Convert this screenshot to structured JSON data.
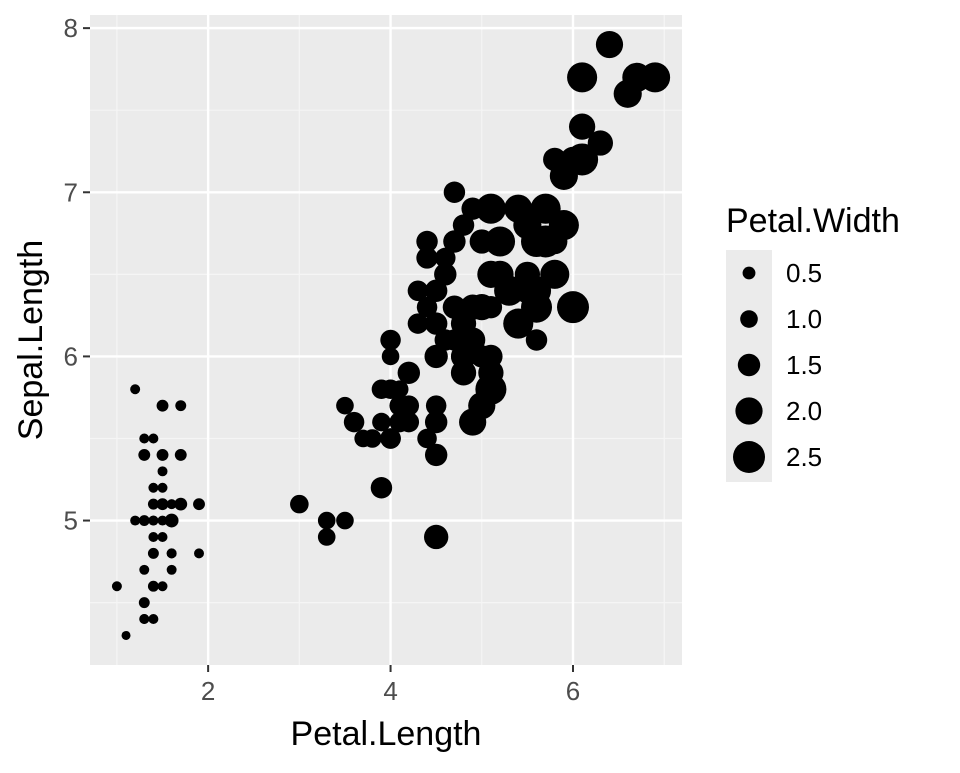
{
  "chart_data": {
    "type": "scatter",
    "xlabel": "Petal.Length",
    "ylabel": "Sepal.Length",
    "xlim": [
      0.705,
      7.195
    ],
    "ylim": [
      4.12,
      8.08
    ],
    "x_ticks": [
      2,
      4,
      6
    ],
    "y_ticks": [
      5,
      6,
      7,
      8
    ],
    "grid": true,
    "legend": {
      "title": "Petal.Width",
      "position": "right",
      "size_range": [
        0.1,
        2.5
      ],
      "breaks": [
        0.5,
        1.0,
        1.5,
        2.0,
        2.5
      ],
      "labels": [
        "0.5",
        "1.0",
        "1.5",
        "2.0",
        "2.5"
      ]
    },
    "points": [
      {
        "x": 1.4,
        "y": 5.1,
        "size": 0.2
      },
      {
        "x": 1.4,
        "y": 4.9,
        "size": 0.2
      },
      {
        "x": 1.3,
        "y": 4.7,
        "size": 0.2
      },
      {
        "x": 1.5,
        "y": 4.6,
        "size": 0.2
      },
      {
        "x": 1.4,
        "y": 5.0,
        "size": 0.2
      },
      {
        "x": 1.7,
        "y": 5.4,
        "size": 0.4
      },
      {
        "x": 1.4,
        "y": 4.6,
        "size": 0.3
      },
      {
        "x": 1.5,
        "y": 5.0,
        "size": 0.2
      },
      {
        "x": 1.4,
        "y": 4.4,
        "size": 0.2
      },
      {
        "x": 1.5,
        "y": 4.9,
        "size": 0.1
      },
      {
        "x": 1.5,
        "y": 5.4,
        "size": 0.2
      },
      {
        "x": 1.6,
        "y": 4.8,
        "size": 0.2
      },
      {
        "x": 1.4,
        "y": 4.8,
        "size": 0.1
      },
      {
        "x": 1.1,
        "y": 4.3,
        "size": 0.1
      },
      {
        "x": 1.2,
        "y": 5.8,
        "size": 0.2
      },
      {
        "x": 1.5,
        "y": 5.7,
        "size": 0.4
      },
      {
        "x": 1.3,
        "y": 5.4,
        "size": 0.4
      },
      {
        "x": 1.4,
        "y": 5.1,
        "size": 0.3
      },
      {
        "x": 1.7,
        "y": 5.7,
        "size": 0.3
      },
      {
        "x": 1.5,
        "y": 5.1,
        "size": 0.3
      },
      {
        "x": 1.7,
        "y": 5.4,
        "size": 0.2
      },
      {
        "x": 1.5,
        "y": 5.1,
        "size": 0.4
      },
      {
        "x": 1.0,
        "y": 4.6,
        "size": 0.2
      },
      {
        "x": 1.7,
        "y": 5.1,
        "size": 0.5
      },
      {
        "x": 1.9,
        "y": 4.8,
        "size": 0.2
      },
      {
        "x": 1.6,
        "y": 5.0,
        "size": 0.2
      },
      {
        "x": 1.6,
        "y": 5.0,
        "size": 0.4
      },
      {
        "x": 1.5,
        "y": 5.2,
        "size": 0.2
      },
      {
        "x": 1.4,
        "y": 5.2,
        "size": 0.2
      },
      {
        "x": 1.6,
        "y": 4.7,
        "size": 0.2
      },
      {
        "x": 1.6,
        "y": 4.8,
        "size": 0.2
      },
      {
        "x": 1.5,
        "y": 5.4,
        "size": 0.4
      },
      {
        "x": 1.5,
        "y": 5.2,
        "size": 0.1
      },
      {
        "x": 1.4,
        "y": 5.5,
        "size": 0.2
      },
      {
        "x": 1.5,
        "y": 4.9,
        "size": 0.2
      },
      {
        "x": 1.2,
        "y": 5.0,
        "size": 0.2
      },
      {
        "x": 1.3,
        "y": 5.5,
        "size": 0.2
      },
      {
        "x": 1.4,
        "y": 4.9,
        "size": 0.1
      },
      {
        "x": 1.3,
        "y": 4.4,
        "size": 0.2
      },
      {
        "x": 1.5,
        "y": 5.1,
        "size": 0.2
      },
      {
        "x": 1.3,
        "y": 5.0,
        "size": 0.3
      },
      {
        "x": 1.3,
        "y": 4.5,
        "size": 0.3
      },
      {
        "x": 1.3,
        "y": 4.4,
        "size": 0.2
      },
      {
        "x": 1.6,
        "y": 5.0,
        "size": 0.6
      },
      {
        "x": 1.9,
        "y": 5.1,
        "size": 0.4
      },
      {
        "x": 1.4,
        "y": 4.8,
        "size": 0.3
      },
      {
        "x": 1.6,
        "y": 5.1,
        "size": 0.2
      },
      {
        "x": 1.4,
        "y": 4.6,
        "size": 0.2
      },
      {
        "x": 1.5,
        "y": 5.3,
        "size": 0.2
      },
      {
        "x": 1.4,
        "y": 5.0,
        "size": 0.2
      },
      {
        "x": 4.7,
        "y": 7.0,
        "size": 1.4
      },
      {
        "x": 4.5,
        "y": 6.4,
        "size": 1.5
      },
      {
        "x": 4.9,
        "y": 6.9,
        "size": 1.5
      },
      {
        "x": 4.0,
        "y": 5.5,
        "size": 1.3
      },
      {
        "x": 4.6,
        "y": 6.5,
        "size": 1.5
      },
      {
        "x": 4.5,
        "y": 5.7,
        "size": 1.3
      },
      {
        "x": 4.7,
        "y": 6.3,
        "size": 1.6
      },
      {
        "x": 3.3,
        "y": 4.9,
        "size": 1.0
      },
      {
        "x": 4.6,
        "y": 6.6,
        "size": 1.3
      },
      {
        "x": 3.9,
        "y": 5.2,
        "size": 1.4
      },
      {
        "x": 3.5,
        "y": 5.0,
        "size": 1.0
      },
      {
        "x": 4.2,
        "y": 5.9,
        "size": 1.5
      },
      {
        "x": 4.0,
        "y": 6.0,
        "size": 1.0
      },
      {
        "x": 4.7,
        "y": 6.1,
        "size": 1.4
      },
      {
        "x": 3.6,
        "y": 5.6,
        "size": 1.3
      },
      {
        "x": 4.4,
        "y": 6.7,
        "size": 1.4
      },
      {
        "x": 4.5,
        "y": 5.6,
        "size": 1.5
      },
      {
        "x": 4.1,
        "y": 5.8,
        "size": 1.0
      },
      {
        "x": 4.5,
        "y": 6.2,
        "size": 1.5
      },
      {
        "x": 3.9,
        "y": 5.6,
        "size": 1.1
      },
      {
        "x": 4.8,
        "y": 5.9,
        "size": 1.8
      },
      {
        "x": 4.0,
        "y": 6.1,
        "size": 1.3
      },
      {
        "x": 4.9,
        "y": 6.3,
        "size": 1.5
      },
      {
        "x": 4.7,
        "y": 6.1,
        "size": 1.2
      },
      {
        "x": 4.3,
        "y": 6.4,
        "size": 1.3
      },
      {
        "x": 4.4,
        "y": 6.6,
        "size": 1.4
      },
      {
        "x": 4.8,
        "y": 6.8,
        "size": 1.4
      },
      {
        "x": 5.0,
        "y": 6.7,
        "size": 1.7
      },
      {
        "x": 4.5,
        "y": 6.0,
        "size": 1.5
      },
      {
        "x": 3.5,
        "y": 5.7,
        "size": 1.0
      },
      {
        "x": 3.8,
        "y": 5.5,
        "size": 1.1
      },
      {
        "x": 3.7,
        "y": 5.5,
        "size": 1.0
      },
      {
        "x": 3.9,
        "y": 5.8,
        "size": 1.2
      },
      {
        "x": 5.1,
        "y": 6.0,
        "size": 1.6
      },
      {
        "x": 4.5,
        "y": 5.4,
        "size": 1.5
      },
      {
        "x": 4.5,
        "y": 6.0,
        "size": 1.6
      },
      {
        "x": 4.7,
        "y": 6.7,
        "size": 1.5
      },
      {
        "x": 4.4,
        "y": 6.3,
        "size": 1.3
      },
      {
        "x": 4.1,
        "y": 5.6,
        "size": 1.3
      },
      {
        "x": 4.0,
        "y": 5.5,
        "size": 1.3
      },
      {
        "x": 4.4,
        "y": 5.5,
        "size": 1.2
      },
      {
        "x": 4.6,
        "y": 6.1,
        "size": 1.4
      },
      {
        "x": 4.0,
        "y": 5.8,
        "size": 1.2
      },
      {
        "x": 3.3,
        "y": 5.0,
        "size": 1.0
      },
      {
        "x": 4.2,
        "y": 5.6,
        "size": 1.3
      },
      {
        "x": 4.2,
        "y": 5.7,
        "size": 1.2
      },
      {
        "x": 4.2,
        "y": 5.7,
        "size": 1.3
      },
      {
        "x": 4.3,
        "y": 6.2,
        "size": 1.3
      },
      {
        "x": 3.0,
        "y": 5.1,
        "size": 1.1
      },
      {
        "x": 4.1,
        "y": 5.7,
        "size": 1.3
      },
      {
        "x": 6.0,
        "y": 6.3,
        "size": 2.5
      },
      {
        "x": 5.1,
        "y": 5.8,
        "size": 1.9
      },
      {
        "x": 5.9,
        "y": 7.1,
        "size": 2.1
      },
      {
        "x": 5.6,
        "y": 6.3,
        "size": 1.8
      },
      {
        "x": 5.8,
        "y": 6.5,
        "size": 2.2
      },
      {
        "x": 6.6,
        "y": 7.6,
        "size": 2.1
      },
      {
        "x": 4.5,
        "y": 4.9,
        "size": 1.7
      },
      {
        "x": 6.3,
        "y": 7.3,
        "size": 1.8
      },
      {
        "x": 5.8,
        "y": 6.7,
        "size": 1.8
      },
      {
        "x": 6.1,
        "y": 7.2,
        "size": 2.5
      },
      {
        "x": 5.1,
        "y": 6.5,
        "size": 2.0
      },
      {
        "x": 5.3,
        "y": 6.4,
        "size": 1.9
      },
      {
        "x": 5.5,
        "y": 6.8,
        "size": 2.1
      },
      {
        "x": 5.0,
        "y": 5.7,
        "size": 2.0
      },
      {
        "x": 5.1,
        "y": 5.8,
        "size": 2.4
      },
      {
        "x": 5.3,
        "y": 6.4,
        "size": 2.3
      },
      {
        "x": 5.5,
        "y": 6.5,
        "size": 1.8
      },
      {
        "x": 6.7,
        "y": 7.7,
        "size": 2.2
      },
      {
        "x": 6.9,
        "y": 7.7,
        "size": 2.3
      },
      {
        "x": 5.0,
        "y": 6.0,
        "size": 1.5
      },
      {
        "x": 5.7,
        "y": 6.9,
        "size": 2.3
      },
      {
        "x": 4.9,
        "y": 5.6,
        "size": 2.0
      },
      {
        "x": 6.7,
        "y": 7.7,
        "size": 2.0
      },
      {
        "x": 4.9,
        "y": 6.3,
        "size": 1.8
      },
      {
        "x": 5.7,
        "y": 6.7,
        "size": 2.1
      },
      {
        "x": 6.0,
        "y": 7.2,
        "size": 1.8
      },
      {
        "x": 4.8,
        "y": 6.2,
        "size": 1.8
      },
      {
        "x": 4.9,
        "y": 6.1,
        "size": 1.8
      },
      {
        "x": 5.6,
        "y": 6.4,
        "size": 2.1
      },
      {
        "x": 5.8,
        "y": 7.2,
        "size": 1.6
      },
      {
        "x": 6.1,
        "y": 7.4,
        "size": 1.9
      },
      {
        "x": 6.4,
        "y": 7.9,
        "size": 2.0
      },
      {
        "x": 5.6,
        "y": 6.4,
        "size": 2.2
      },
      {
        "x": 5.1,
        "y": 6.3,
        "size": 1.5
      },
      {
        "x": 5.6,
        "y": 6.1,
        "size": 1.4
      },
      {
        "x": 6.1,
        "y": 7.7,
        "size": 2.3
      },
      {
        "x": 5.6,
        "y": 6.3,
        "size": 2.4
      },
      {
        "x": 5.5,
        "y": 6.4,
        "size": 1.8
      },
      {
        "x": 4.8,
        "y": 6.0,
        "size": 1.8
      },
      {
        "x": 5.4,
        "y": 6.9,
        "size": 2.1
      },
      {
        "x": 5.6,
        "y": 6.7,
        "size": 2.4
      },
      {
        "x": 5.1,
        "y": 6.9,
        "size": 2.3
      },
      {
        "x": 5.1,
        "y": 5.8,
        "size": 1.9
      },
      {
        "x": 5.9,
        "y": 6.8,
        "size": 2.3
      },
      {
        "x": 5.7,
        "y": 6.7,
        "size": 2.5
      },
      {
        "x": 5.2,
        "y": 6.7,
        "size": 2.3
      },
      {
        "x": 5.0,
        "y": 6.3,
        "size": 1.9
      },
      {
        "x": 5.2,
        "y": 6.5,
        "size": 2.0
      },
      {
        "x": 5.4,
        "y": 6.2,
        "size": 2.3
      },
      {
        "x": 5.1,
        "y": 5.9,
        "size": 1.8
      }
    ]
  }
}
